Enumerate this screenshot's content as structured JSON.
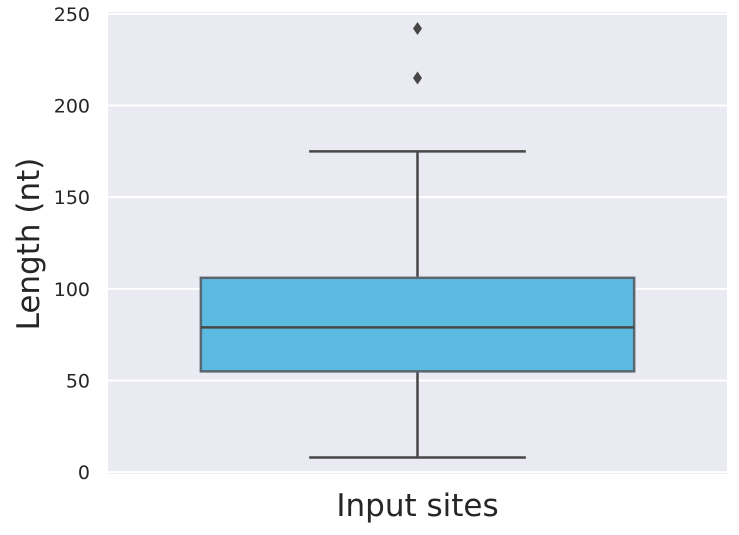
{
  "chart_data": {
    "type": "box",
    "title": "",
    "xlabel": "",
    "ylabel": "Length (nt)",
    "ylim": [
      -1,
      251
    ],
    "yticks": [
      0,
      50,
      100,
      150,
      200,
      250
    ],
    "ytick_labels": [
      "0",
      "50",
      "100",
      "150",
      "200",
      "250"
    ],
    "grid": true,
    "categories": [
      "Input sites"
    ],
    "boxes": [
      {
        "category": "Input sites",
        "whisker_low": 8,
        "q1": 55,
        "median": 79,
        "q3": 106,
        "whisker_high": 175,
        "outliers": [
          215,
          242
        ],
        "color": "#5bbae0"
      }
    ]
  },
  "colors": {
    "plot_background": "#eaeaf2",
    "grid": "#ffffff",
    "box_fill": "#5bbae0",
    "line": "#474747",
    "text": "#262626"
  }
}
